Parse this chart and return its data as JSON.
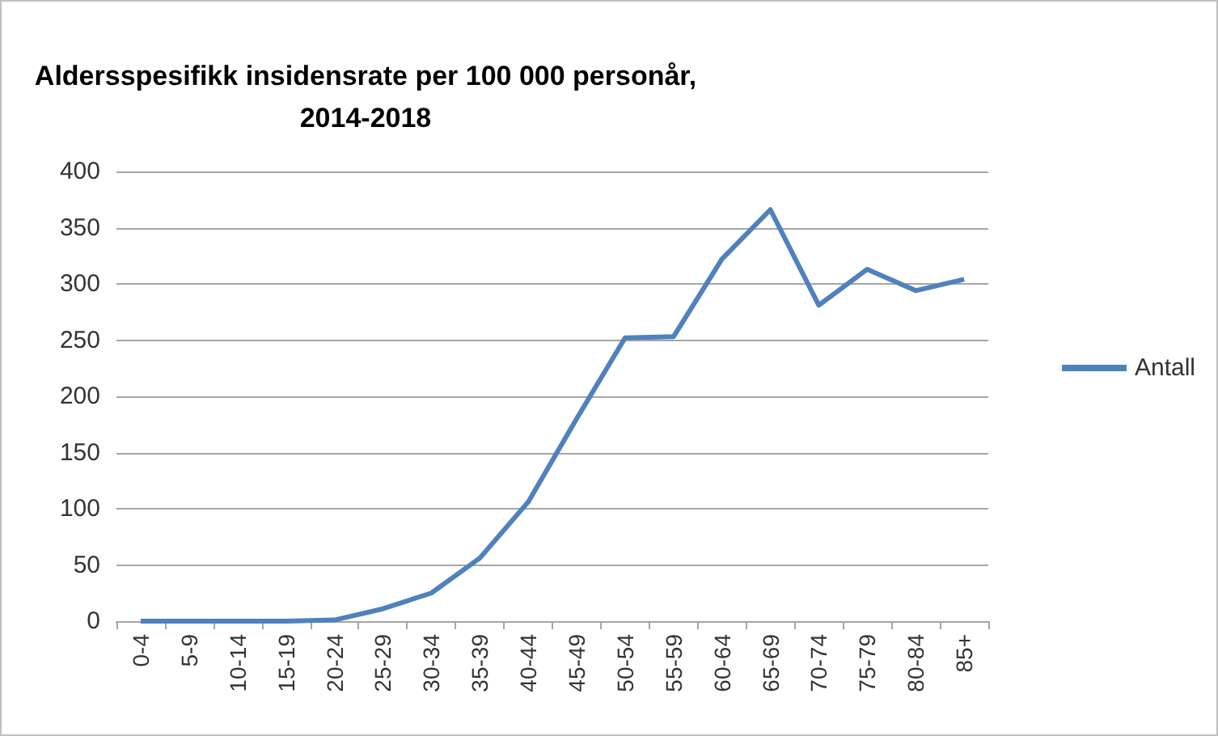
{
  "chart_data": {
    "type": "line",
    "title": "Aldersspesifikk insidensrate per 100 000 personår,\n2014-2018",
    "categories": [
      "0-4",
      "5-9",
      "10-14",
      "15-19",
      "20-24",
      "25-29",
      "30-34",
      "35-39",
      "40-44",
      "45-49",
      "50-54",
      "55-59",
      "60-64",
      "65-69",
      "70-74",
      "75-79",
      "80-84",
      "85+"
    ],
    "series": [
      {
        "name": "Antall",
        "color": "#4f81bd",
        "values": [
          0,
          0,
          0,
          0,
          1,
          11,
          25,
          56,
          106,
          180,
          252,
          253,
          322,
          366,
          281,
          313,
          294,
          304
        ]
      }
    ],
    "ylim": [
      0,
      400
    ],
    "yticks": [
      0,
      50,
      100,
      150,
      200,
      250,
      300,
      350,
      400
    ],
    "grid": "y",
    "legend": "right",
    "marker": "none",
    "line_style": "solid"
  }
}
